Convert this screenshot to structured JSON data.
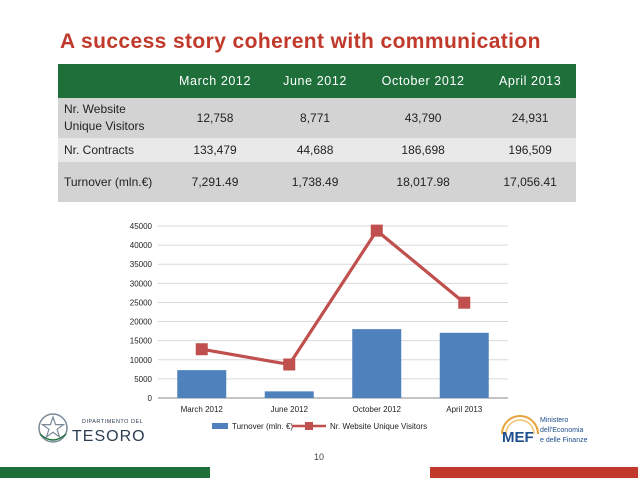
{
  "slide": {
    "title": "A success story coherent with communication",
    "page_number": "10"
  },
  "table": {
    "columns": [
      "",
      "March 2012",
      "June 2012",
      "October 2012",
      "April 2013"
    ],
    "rows": [
      {
        "label": "Nr. Website Unique Visitors",
        "values": [
          "12,758",
          "8,771",
          "43,790",
          "24,931"
        ]
      },
      {
        "label": "Nr. Contracts",
        "values": [
          "133,479",
          "44,688",
          "186,698",
          "196,509"
        ]
      },
      {
        "label": "Turnover (mln.€)",
        "values": [
          "7,291.49",
          "1,738.49",
          "18,017.98",
          "17,056.41"
        ]
      }
    ]
  },
  "chart_data": {
    "type": "bar",
    "categories": [
      "March 2012",
      "June 2012",
      "October 2012",
      "April 2013"
    ],
    "series": [
      {
        "name": "Turnover (mln. €)",
        "type": "bar",
        "color": "#4f81bd",
        "values": [
          7291.49,
          1738.49,
          18017.98,
          17056.41
        ]
      },
      {
        "name": "Nr. Website Unique Visitors",
        "type": "line",
        "color": "#c0504d",
        "values": [
          12758,
          8771,
          43790,
          24931
        ]
      }
    ],
    "yticks": [
      "0",
      "5000",
      "10000",
      "15000",
      "20000",
      "25000",
      "30000",
      "35000",
      "40000",
      "45000"
    ],
    "ylim": [
      0,
      45000
    ],
    "grid": true,
    "legend_position": "bottom"
  },
  "logos": {
    "left": {
      "line1": "DIPARTIMENTO DEL",
      "line2": "TESORO",
      "icon": "italian-emblem-icon"
    },
    "right": {
      "mark": "MEF",
      "line1": "Ministero",
      "line2": "dell'Economia",
      "line3": "e delle Finanze",
      "icon": "mef-logo-icon"
    }
  },
  "colors": {
    "title": "#c0392b",
    "table_header": "#1e6f3a",
    "band_green": "#1e6f3a",
    "band_red": "#c0392b"
  }
}
